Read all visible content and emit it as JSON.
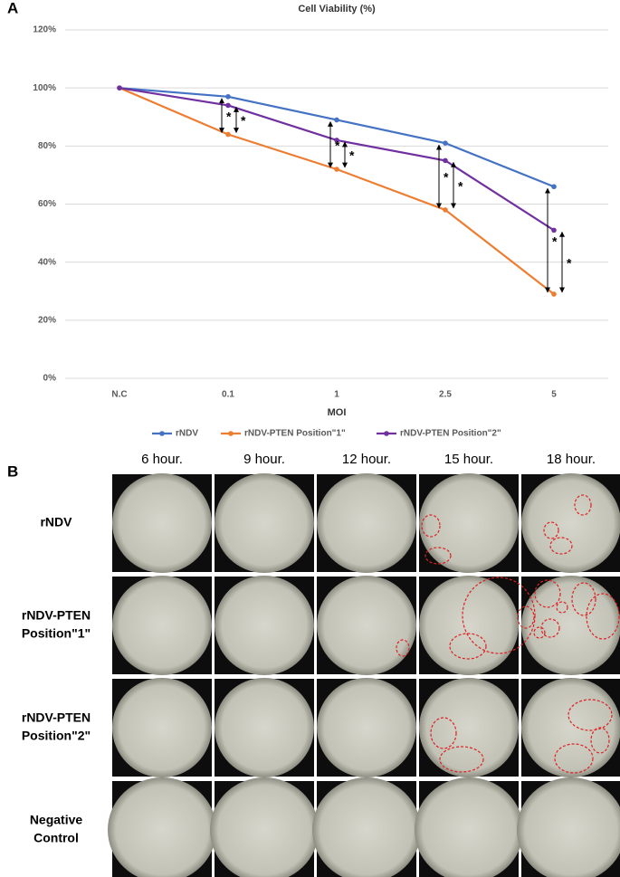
{
  "chart_data": {
    "type": "line",
    "title": "Cell Viability (%)",
    "x_label": "MOI",
    "categories": [
      "N.C",
      "0.1",
      "1",
      "2.5",
      "5"
    ],
    "series": [
      {
        "name": "rNDV",
        "color": "#4472c4",
        "values": [
          100,
          97,
          89,
          81,
          66
        ]
      },
      {
        "name": "rNDV-PTEN Position\"1\"",
        "color": "#ed7d31",
        "values": [
          100,
          84,
          72,
          58,
          29
        ]
      },
      {
        "name": "rNDV-PTEN Position\"2\"",
        "color": "#7030a0",
        "values": [
          100,
          94,
          82,
          75,
          51
        ]
      }
    ],
    "ylim": [
      0,
      120
    ],
    "yticks": [
      {
        "value": 0,
        "label": "0%"
      },
      {
        "value": 20,
        "label": "20%"
      },
      {
        "value": 40,
        "label": "40%"
      },
      {
        "value": 60,
        "label": "60%"
      },
      {
        "value": 80,
        "label": "80%"
      },
      {
        "value": 100,
        "label": "100%"
      },
      {
        "value": 120,
        "label": "120%"
      }
    ],
    "grid": true,
    "legend": "bottom",
    "annotations": [
      "*",
      "*",
      "*",
      "*",
      "*",
      "*",
      "*",
      "*"
    ]
  },
  "panel_labels": [
    "A",
    "B"
  ],
  "micrographs": {
    "columns": [
      "6 hour.",
      "9 hour.",
      "12 hour.",
      "15 hour.",
      "18 hour."
    ],
    "rows": [
      [
        "rNDV"
      ],
      [
        "rNDV-PTEN",
        "Position\"1\""
      ],
      [
        "rNDV-PTEN",
        "Position\"2\""
      ],
      [
        "Negative",
        "Control"
      ]
    ]
  }
}
